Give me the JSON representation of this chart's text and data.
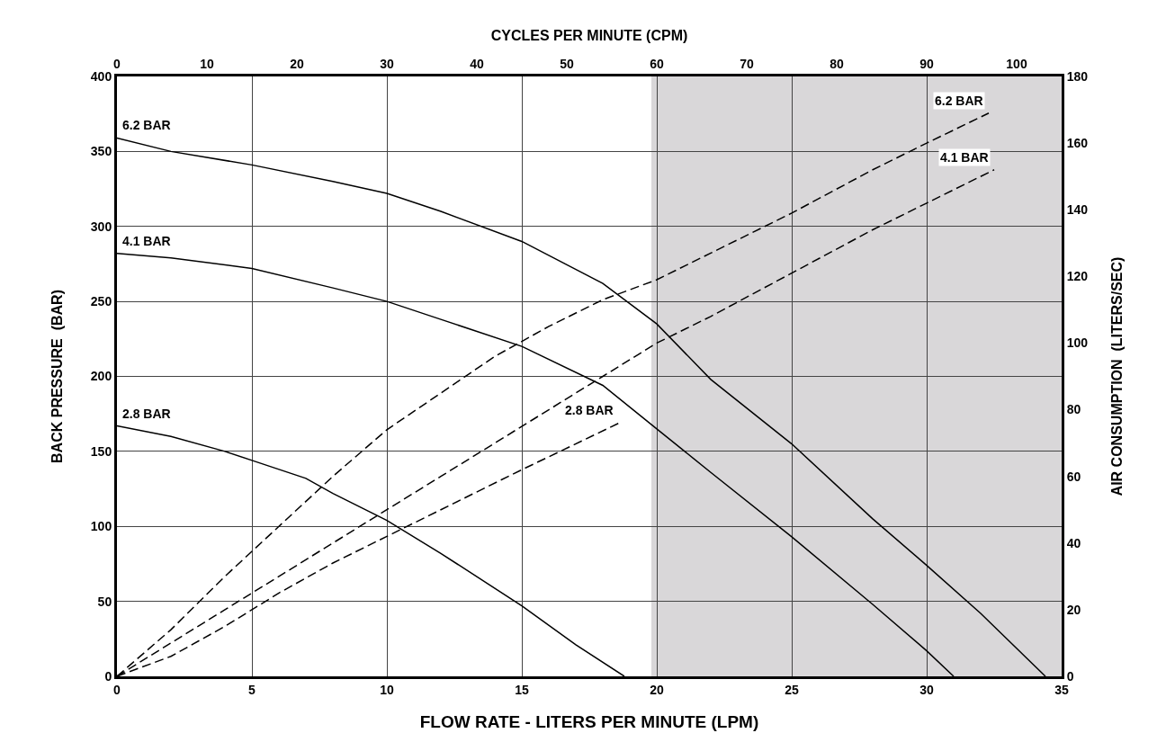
{
  "chart_data": {
    "type": "line",
    "xlabel": "FLOW RATE - LITERS PER MINUTE (LPM)",
    "ylabel": "BACK PRESSURE  (BAR)",
    "y2label": "AIR CONSUMPTION  (LITERS/SEC)",
    "x2label": "CYCLES PER MINUTE (CPM)",
    "xlim": [
      0,
      35
    ],
    "xticks": [
      0,
      5,
      10,
      15,
      20,
      25,
      30,
      35
    ],
    "ylim": [
      0,
      400
    ],
    "yticks": [
      0,
      50,
      100,
      150,
      200,
      250,
      300,
      350,
      400
    ],
    "y2lim": [
      0,
      180
    ],
    "y2ticks": [
      0,
      20,
      40,
      60,
      80,
      100,
      120,
      140,
      160,
      180
    ],
    "x2lim": [
      0,
      105
    ],
    "x2ticks": [
      0,
      10,
      20,
      30,
      40,
      50,
      60,
      70,
      80,
      90,
      100
    ],
    "grid": true,
    "legend": false,
    "bands": [
      {
        "axis": "x",
        "from": 19.8,
        "to": 35,
        "color": "#d9d7d9"
      }
    ],
    "series": [
      {
        "name": "6.2 BAR",
        "color": "#000000",
        "line_style": "solid",
        "axis": "y",
        "x": [
          0,
          2,
          5,
          8,
          10,
          12,
          15,
          18,
          20,
          22,
          25,
          28,
          30,
          32,
          34.4
        ],
        "values": [
          359,
          350,
          341,
          330,
          322,
          310,
          290,
          262,
          235,
          198,
          155,
          105,
          74,
          42,
          0
        ]
      },
      {
        "name": "4.1 BAR",
        "color": "#000000",
        "line_style": "solid",
        "axis": "y",
        "x": [
          0,
          2,
          5,
          8,
          10,
          12,
          15,
          18,
          20,
          22,
          25,
          28,
          30,
          31
        ],
        "values": [
          282,
          279,
          272,
          259,
          250,
          238,
          220,
          194,
          165,
          136,
          93,
          48,
          17,
          0
        ]
      },
      {
        "name": "2.8 BAR",
        "color": "#000000",
        "line_style": "solid",
        "axis": "y",
        "x": [
          0,
          2,
          4,
          5,
          7,
          8,
          10,
          12,
          15,
          17,
          18.8
        ],
        "values": [
          167,
          160,
          150,
          144,
          132,
          122,
          104,
          82,
          47,
          21,
          0
        ]
      },
      {
        "name": "6.2 BAR",
        "color": "#000000",
        "line_style": "dashed",
        "axis": "y2",
        "x": [
          0,
          2,
          4,
          6,
          8,
          10,
          12,
          14,
          16,
          18,
          20,
          22,
          25,
          28,
          30,
          32.3
        ],
        "values": [
          0,
          14,
          30,
          45,
          60,
          74,
          85,
          96,
          105,
          113,
          119,
          127,
          139,
          152,
          160,
          169
        ]
      },
      {
        "name": "4.1 BAR",
        "color": "#000000",
        "line_style": "dashed",
        "axis": "y2",
        "x": [
          0,
          2,
          4,
          6,
          8,
          10,
          12,
          14,
          16,
          18,
          20,
          22,
          25,
          28,
          30,
          32.5
        ],
        "values": [
          0,
          10,
          20,
          30,
          40,
          50,
          60,
          70,
          80,
          90,
          100,
          108,
          121,
          134,
          142,
          152
        ]
      },
      {
        "name": "2.8 BAR",
        "color": "#000000",
        "line_style": "dashed",
        "axis": "y2",
        "x": [
          0,
          2,
          4,
          6,
          8,
          10,
          12,
          15,
          18.6
        ],
        "values": [
          0,
          6,
          15,
          25,
          34,
          42,
          50,
          62,
          76
        ]
      }
    ]
  }
}
